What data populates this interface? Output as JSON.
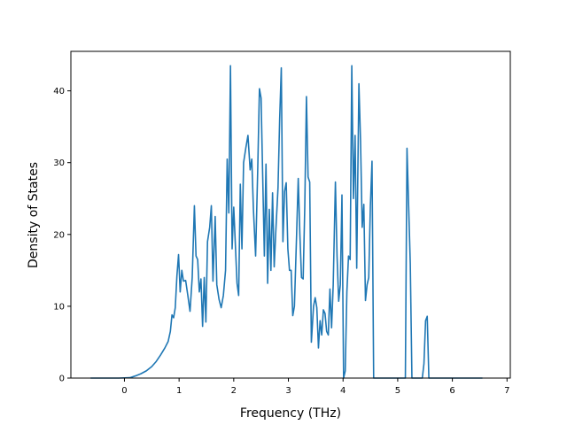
{
  "chart_data": {
    "type": "line",
    "title": "",
    "xlabel": "Frequency (THz)",
    "ylabel": "Density of States",
    "xlim": [
      -0.98,
      7.06
    ],
    "ylim": [
      0,
      45.5
    ],
    "xticks": [
      0,
      1,
      2,
      3,
      4,
      5,
      6,
      7
    ],
    "yticks": [
      0,
      10,
      20,
      30,
      40
    ],
    "grid": false,
    "legend": "none",
    "series": [
      {
        "color": "#1f77b4",
        "points": [
          [
            -0.62,
            0
          ],
          [
            -0.1,
            0
          ],
          [
            0.1,
            0.05
          ],
          [
            0.2,
            0.3
          ],
          [
            0.3,
            0.6
          ],
          [
            0.4,
            1.0
          ],
          [
            0.5,
            1.6
          ],
          [
            0.58,
            2.3
          ],
          [
            0.66,
            3.2
          ],
          [
            0.74,
            4.2
          ],
          [
            0.8,
            5.1
          ],
          [
            0.84,
            6.5
          ],
          [
            0.87,
            8.8
          ],
          [
            0.9,
            8.4
          ],
          [
            0.93,
            9.8
          ],
          [
            0.96,
            14.2
          ],
          [
            0.99,
            17.2
          ],
          [
            1.02,
            12.0
          ],
          [
            1.05,
            15.0
          ],
          [
            1.08,
            13.5
          ],
          [
            1.12,
            13.6
          ],
          [
            1.16,
            11.5
          ],
          [
            1.2,
            9.3
          ],
          [
            1.24,
            14.0
          ],
          [
            1.28,
            24.0
          ],
          [
            1.31,
            17.0
          ],
          [
            1.34,
            16.5
          ],
          [
            1.37,
            12.0
          ],
          [
            1.4,
            13.8
          ],
          [
            1.43,
            7.2
          ],
          [
            1.46,
            14.0
          ],
          [
            1.49,
            7.8
          ],
          [
            1.52,
            19.0
          ],
          [
            1.56,
            21.0
          ],
          [
            1.59,
            24.0
          ],
          [
            1.62,
            13.5
          ],
          [
            1.66,
            22.5
          ],
          [
            1.69,
            13.0
          ],
          [
            1.73,
            11.0
          ],
          [
            1.77,
            9.8
          ],
          [
            1.81,
            11.5
          ],
          [
            1.85,
            15.0
          ],
          [
            1.88,
            30.5
          ],
          [
            1.91,
            23.0
          ],
          [
            1.94,
            43.5
          ],
          [
            1.97,
            18.0
          ],
          [
            2.0,
            23.8
          ],
          [
            2.03,
            18.5
          ],
          [
            2.06,
            13.2
          ],
          [
            2.09,
            11.5
          ],
          [
            2.12,
            27.0
          ],
          [
            2.15,
            18.0
          ],
          [
            2.18,
            30.0
          ],
          [
            2.22,
            32.0
          ],
          [
            2.26,
            33.8
          ],
          [
            2.3,
            29.0
          ],
          [
            2.33,
            30.5
          ],
          [
            2.36,
            23.5
          ],
          [
            2.4,
            17.0
          ],
          [
            2.44,
            29.5
          ],
          [
            2.47,
            40.3
          ],
          [
            2.5,
            39.0
          ],
          [
            2.53,
            28.0
          ],
          [
            2.56,
            17.0
          ],
          [
            2.59,
            29.8
          ],
          [
            2.62,
            13.2
          ],
          [
            2.65,
            23.5
          ],
          [
            2.68,
            15.0
          ],
          [
            2.71,
            25.8
          ],
          [
            2.74,
            15.5
          ],
          [
            2.77,
            20.5
          ],
          [
            2.81,
            26.5
          ],
          [
            2.84,
            36.0
          ],
          [
            2.87,
            43.2
          ],
          [
            2.9,
            19.0
          ],
          [
            2.93,
            26.0
          ],
          [
            2.96,
            27.2
          ],
          [
            2.99,
            18.0
          ],
          [
            3.02,
            15.0
          ],
          [
            3.05,
            15.0
          ],
          [
            3.08,
            8.7
          ],
          [
            3.11,
            10.0
          ],
          [
            3.15,
            20.0
          ],
          [
            3.18,
            27.8
          ],
          [
            3.21,
            20.0
          ],
          [
            3.24,
            14.0
          ],
          [
            3.27,
            13.8
          ],
          [
            3.3,
            24.0
          ],
          [
            3.33,
            39.2
          ],
          [
            3.36,
            28.0
          ],
          [
            3.39,
            27.3
          ],
          [
            3.42,
            5.0
          ],
          [
            3.46,
            10.0
          ],
          [
            3.49,
            11.2
          ],
          [
            3.52,
            9.8
          ],
          [
            3.55,
            4.2
          ],
          [
            3.58,
            8.0
          ],
          [
            3.61,
            6.0
          ],
          [
            3.64,
            9.5
          ],
          [
            3.67,
            9.0
          ],
          [
            3.7,
            6.5
          ],
          [
            3.73,
            6.0
          ],
          [
            3.76,
            12.4
          ],
          [
            3.79,
            7.0
          ],
          [
            3.82,
            13.0
          ],
          [
            3.86,
            27.3
          ],
          [
            3.89,
            17.0
          ],
          [
            3.92,
            10.7
          ],
          [
            3.95,
            13.0
          ],
          [
            3.98,
            25.5
          ],
          [
            4.01,
            0
          ],
          [
            4.04,
            1.0
          ],
          [
            4.07,
            12.0
          ],
          [
            4.1,
            17.0
          ],
          [
            4.13,
            16.5
          ],
          [
            4.16,
            43.5
          ],
          [
            4.19,
            25.0
          ],
          [
            4.22,
            33.8
          ],
          [
            4.25,
            15.3
          ],
          [
            4.29,
            41.0
          ],
          [
            4.32,
            33.0
          ],
          [
            4.35,
            21.0
          ],
          [
            4.38,
            24.2
          ],
          [
            4.41,
            10.8
          ],
          [
            4.44,
            13.0
          ],
          [
            4.47,
            14.0
          ],
          [
            4.5,
            24.0
          ],
          [
            4.53,
            30.2
          ],
          [
            4.56,
            0
          ],
          [
            4.62,
            0
          ],
          [
            5.1,
            0
          ],
          [
            5.14,
            0
          ],
          [
            5.17,
            32.0
          ],
          [
            5.2,
            24.0
          ],
          [
            5.23,
            16.0
          ],
          [
            5.26,
            0
          ],
          [
            5.45,
            0
          ],
          [
            5.48,
            2.0
          ],
          [
            5.51,
            8.0
          ],
          [
            5.54,
            8.6
          ],
          [
            5.57,
            0
          ],
          [
            6.55,
            0
          ]
        ]
      }
    ]
  }
}
